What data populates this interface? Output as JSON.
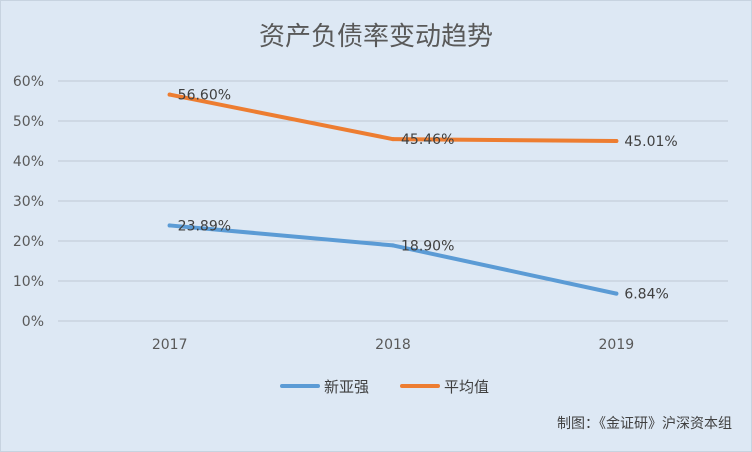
{
  "chart_data": {
    "type": "line",
    "title": "资产负债率变动趋势",
    "categories": [
      "2017",
      "2018",
      "2019"
    ],
    "ylim": [
      0,
      60
    ],
    "yticks": [
      "0%",
      "10%",
      "20%",
      "30%",
      "40%",
      "50%",
      "60%"
    ],
    "grid": true,
    "legend_position": "bottom",
    "series": [
      {
        "name": "新亚强",
        "color": "#5b9bd5",
        "values": [
          23.89,
          18.9,
          6.84
        ],
        "labels": [
          "23.89%",
          "18.90%",
          "6.84%"
        ]
      },
      {
        "name": "平均值",
        "color": "#ed7d31",
        "values": [
          56.6,
          45.46,
          45.01
        ],
        "labels": [
          "56.60%",
          "45.46%",
          "45.01%"
        ]
      }
    ]
  },
  "credit": "制图：《金证研》沪深资本组"
}
